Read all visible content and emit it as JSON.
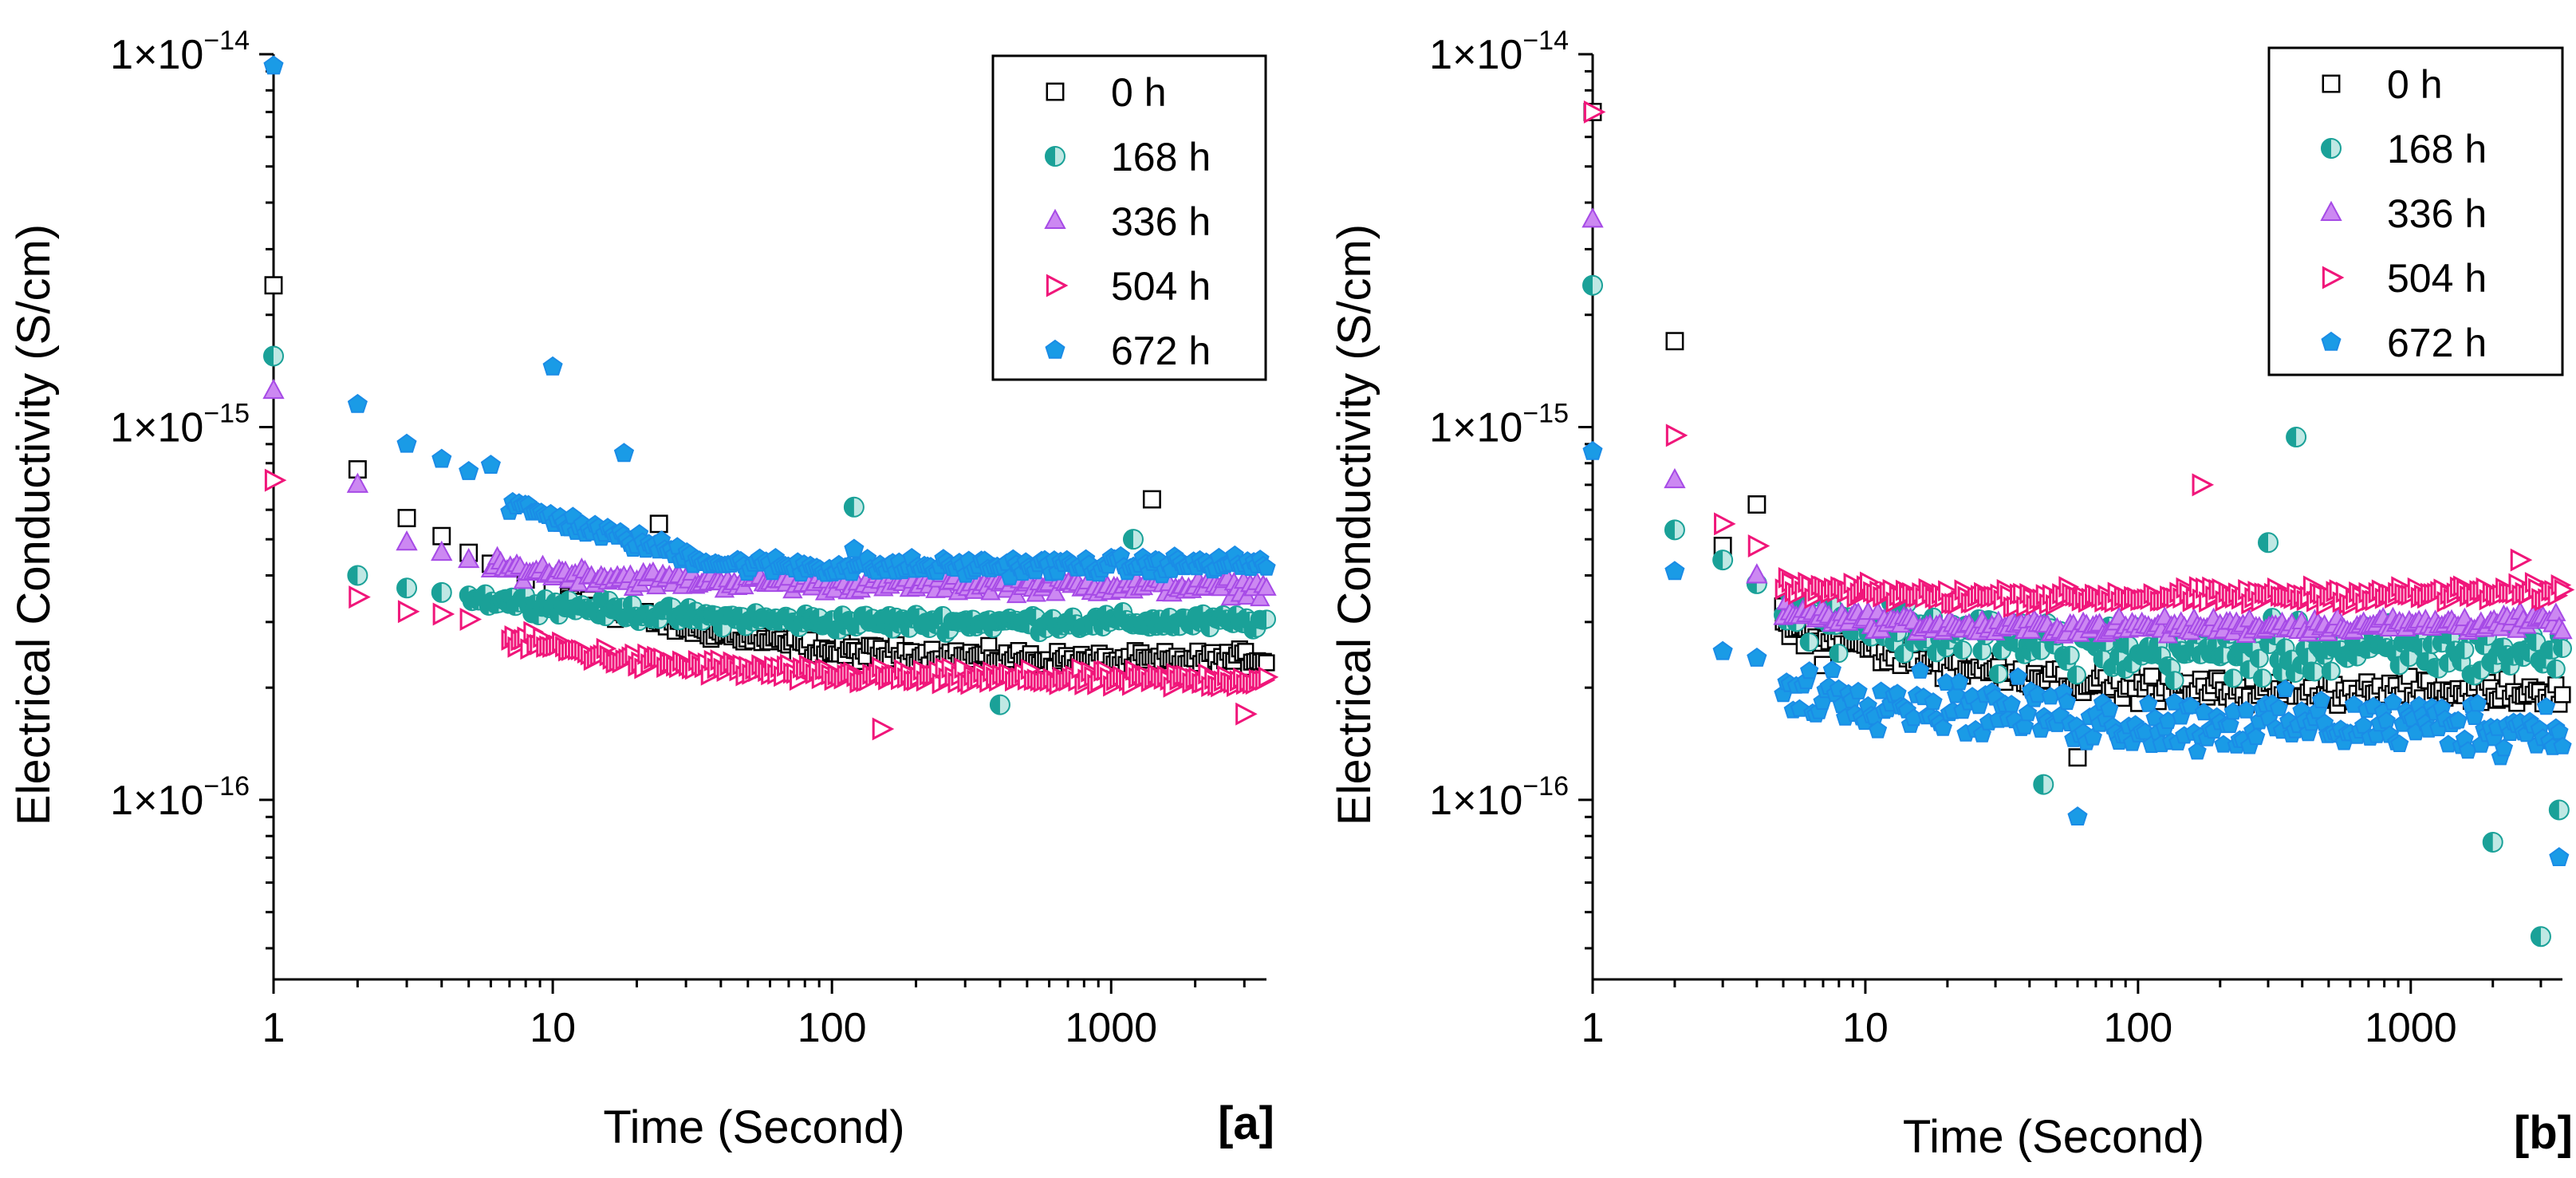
{
  "chart_data": [
    {
      "type": "scatter",
      "panel": "[a]",
      "xscale": "log",
      "yscale": "log",
      "xlabel": "Time (Second)",
      "ylabel": "Electrical Conductivity (S/cm)",
      "xlim": [
        1,
        3600
      ],
      "ylim": [
        3.3e-17,
        1e-14
      ],
      "xticks": [
        {
          "value": 1,
          "label": "1"
        },
        {
          "value": 10,
          "label": "10"
        },
        {
          "value": 100,
          "label": "100"
        },
        {
          "value": 1000,
          "label": "1000"
        }
      ],
      "yticks": [
        {
          "value": 1e-14,
          "base": "1×10",
          "exp": "−14"
        },
        {
          "value": 1e-15,
          "base": "1×10",
          "exp": "−15"
        },
        {
          "value": 1e-16,
          "base": "1×10",
          "exp": "−16"
        }
      ],
      "legend_position": "top-right",
      "series": [
        {
          "name": "0 h",
          "marker": "square",
          "color": "#000000",
          "fill": "#ffffff",
          "key_points": [
            [
              1,
              2.4e-15
            ],
            [
              2,
              7.7e-16
            ],
            [
              3,
              5.7e-16
            ],
            [
              4,
              5.1e-16
            ],
            [
              5,
              4.6e-16
            ],
            [
              6,
              4.3e-16
            ],
            [
              8,
              3.9e-16
            ],
            [
              10,
              3.6e-16
            ],
            [
              24,
              5.5e-16
            ],
            [
              1400,
              6.4e-16
            ]
          ],
          "trend": [
            [
              10,
              3.5e-16
            ],
            [
              30,
              2.9e-16
            ],
            [
              100,
              2.5e-16
            ],
            [
              1000,
              2.35e-16
            ],
            [
              3600,
              2.4e-16
            ]
          ]
        },
        {
          "name": "168 h",
          "marker": "half-circle",
          "color": "#1aa198",
          "fill": "#1aa198",
          "key_points": [
            [
              1,
              1.55e-15
            ],
            [
              2,
              4e-16
            ],
            [
              3,
              3.7e-16
            ],
            [
              4,
              3.6e-16
            ],
            [
              120,
              6.1e-16
            ],
            [
              1200,
              5e-16
            ],
            [
              400,
              1.8e-16
            ]
          ],
          "trend": [
            [
              5,
              3.5e-16
            ],
            [
              30,
              3.1e-16
            ],
            [
              100,
              3e-16
            ],
            [
              1000,
              3e-16
            ],
            [
              3600,
              3e-16
            ]
          ]
        },
        {
          "name": "336 h",
          "marker": "triangle",
          "color": "#a64ae6",
          "fill": "#cc88f2",
          "key_points": [
            [
              1,
              1.25e-15
            ],
            [
              2,
              7e-16
            ],
            [
              3,
              4.9e-16
            ],
            [
              4,
              4.6e-16
            ],
            [
              5,
              4.4e-16
            ],
            [
              11,
              5.5e-16
            ]
          ],
          "trend": [
            [
              6,
              4.2e-16
            ],
            [
              20,
              3.9e-16
            ],
            [
              100,
              3.8e-16
            ],
            [
              1000,
              3.75e-16
            ],
            [
              3600,
              3.7e-16
            ]
          ]
        },
        {
          "name": "504 h",
          "marker": "triangle-right",
          "color": "#f0167a",
          "fill": "#f0167a",
          "key_points": [
            [
              1,
              7.2e-16
            ],
            [
              2,
              3.5e-16
            ],
            [
              3,
              3.2e-16
            ],
            [
              4,
              3.15e-16
            ],
            [
              5,
              3.05e-16
            ],
            [
              150,
              1.55e-16
            ],
            [
              3000,
              1.7e-16
            ]
          ],
          "trend": [
            [
              7,
              2.7e-16
            ],
            [
              20,
              2.35e-16
            ],
            [
              100,
              2.15e-16
            ],
            [
              1000,
              2.1e-16
            ],
            [
              3600,
              2.1e-16
            ]
          ]
        },
        {
          "name": "672 h",
          "marker": "pentagon",
          "color": "#1a8ce6",
          "fill": "#1a9be6",
          "key_points": [
            [
              1,
              9.3e-15
            ],
            [
              2,
              1.15e-15
            ],
            [
              3,
              9e-16
            ],
            [
              4,
              8.2e-16
            ],
            [
              5,
              7.6e-16
            ],
            [
              6,
              7.9e-16
            ],
            [
              10,
              1.45e-15
            ],
            [
              18,
              8.5e-16
            ],
            [
              120,
              4.7e-16
            ]
          ],
          "trend": [
            [
              7,
              6.2e-16
            ],
            [
              15,
              5.2e-16
            ],
            [
              40,
              4.3e-16
            ],
            [
              100,
              4.2e-16
            ],
            [
              1000,
              4.25e-16
            ],
            [
              3600,
              4.3e-16
            ]
          ]
        }
      ]
    },
    {
      "type": "scatter",
      "panel": "[b]",
      "xscale": "log",
      "yscale": "log",
      "xlabel": "Time (Second)",
      "ylabel": "Electrical Conductivity (S/cm)",
      "xlim": [
        1,
        3600
      ],
      "ylim": [
        3.3e-17,
        1e-14
      ],
      "xticks": [
        {
          "value": 1,
          "label": "1"
        },
        {
          "value": 10,
          "label": "10"
        },
        {
          "value": 100,
          "label": "100"
        },
        {
          "value": 1000,
          "label": "1000"
        }
      ],
      "yticks": [
        {
          "value": 1e-14,
          "base": "1×10",
          "exp": "−14"
        },
        {
          "value": 1e-15,
          "base": "1×10",
          "exp": "−15"
        },
        {
          "value": 1e-16,
          "base": "1×10",
          "exp": "−16"
        }
      ],
      "legend_position": "top-right",
      "series": [
        {
          "name": "0 h",
          "marker": "square",
          "color": "#000000",
          "fill": "#ffffff",
          "key_points": [
            [
              1,
              7e-15
            ],
            [
              2,
              1.7e-15
            ],
            [
              3,
              4.8e-16
            ],
            [
              4,
              6.2e-16
            ],
            [
              5,
              3.3e-16
            ],
            [
              6,
              2.6e-16
            ],
            [
              7,
              2.3e-16
            ],
            [
              60,
              1.3e-16
            ]
          ],
          "trend": [
            [
              5,
              2.9e-16
            ],
            [
              20,
              2.3e-16
            ],
            [
              100,
              2e-16
            ],
            [
              300,
              1.95e-16
            ],
            [
              1000,
              1.95e-16
            ],
            [
              3600,
              1.95e-16
            ]
          ]
        },
        {
          "name": "168 h",
          "marker": "half-circle",
          "color": "#1aa198",
          "fill": "#1aa198",
          "key_points": [
            [
              1,
              2.4e-15
            ],
            [
              2,
              5.3e-16
            ],
            [
              3,
              4.4e-16
            ],
            [
              4,
              3.8e-16
            ],
            [
              380,
              9.4e-16
            ],
            [
              300,
              4.9e-16
            ],
            [
              45,
              1.1e-16
            ],
            [
              2000,
              7.7e-17
            ],
            [
              3000,
              4.3e-17
            ],
            [
              3500,
              9.4e-17
            ]
          ],
          "trend": [
            [
              5,
              3.2e-16
            ],
            [
              30,
              2.7e-16
            ],
            [
              100,
              2.5e-16
            ],
            [
              1000,
              2.5e-16
            ],
            [
              3600,
              2.5e-16
            ]
          ]
        },
        {
          "name": "336 h",
          "marker": "triangle",
          "color": "#a64ae6",
          "fill": "#cc88f2",
          "key_points": [
            [
              1,
              3.6e-15
            ],
            [
              2,
              7.2e-16
            ],
            [
              4,
              4e-16
            ]
          ],
          "trend": [
            [
              5,
              3.2e-16
            ],
            [
              20,
              2.9e-16
            ],
            [
              100,
              2.9e-16
            ],
            [
              1000,
              2.95e-16
            ],
            [
              3600,
              3e-16
            ]
          ]
        },
        {
          "name": "504 h",
          "marker": "triangle-right",
          "color": "#f0167a",
          "fill": "#f0167a",
          "key_points": [
            [
              1,
              7e-15
            ],
            [
              2,
              9.5e-16
            ],
            [
              3,
              5.5e-16
            ],
            [
              4,
              4.8e-16
            ],
            [
              170,
              7e-16
            ],
            [
              2500,
              4.4e-16
            ]
          ],
          "trend": [
            [
              5,
              3.7e-16
            ],
            [
              20,
              3.5e-16
            ],
            [
              100,
              3.5e-16
            ],
            [
              1000,
              3.55e-16
            ],
            [
              3600,
              3.6e-16
            ]
          ]
        },
        {
          "name": "672 h",
          "marker": "pentagon",
          "color": "#1a8ce6",
          "fill": "#1a9be6",
          "key_points": [
            [
              1,
              8.6e-16
            ],
            [
              2,
              4.1e-16
            ],
            [
              3,
              2.5e-16
            ],
            [
              4,
              2.4e-16
            ],
            [
              60,
              9e-17
            ],
            [
              3500,
              7e-17
            ]
          ],
          "trend": [
            [
              5,
              2e-16
            ],
            [
              20,
              1.8e-16
            ],
            [
              100,
              1.6e-16
            ],
            [
              1000,
              1.6e-16
            ],
            [
              3600,
              1.55e-16
            ]
          ]
        }
      ]
    }
  ]
}
